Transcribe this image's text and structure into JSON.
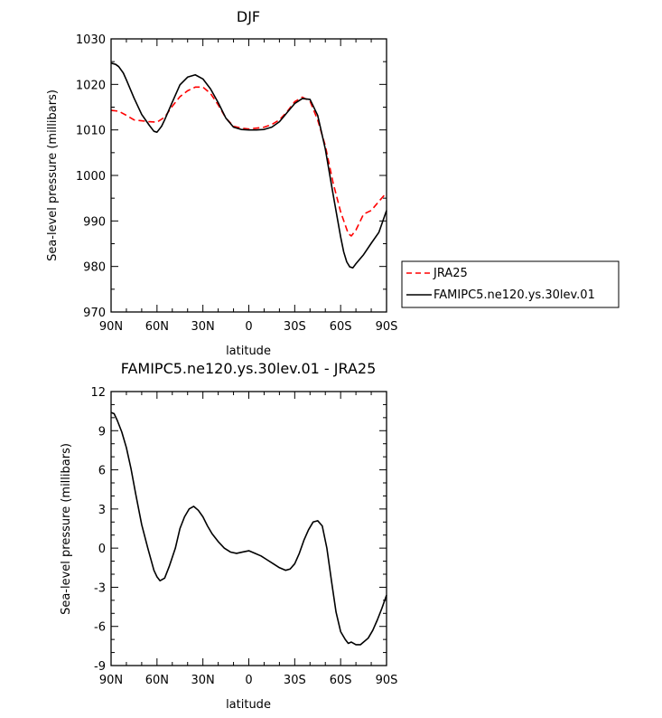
{
  "chart_data": [
    {
      "type": "line",
      "title": "DJF",
      "xlabel": "latitude",
      "ylabel": "Sea-level pressure (millibars)",
      "ylim": [
        970,
        1030
      ],
      "yticks": [
        "970",
        "980",
        "990",
        "1000",
        "1010",
        "1020",
        "1030"
      ],
      "xlim": [
        90,
        -90
      ],
      "xticks": [
        "90N",
        "60N",
        "30N",
        "0",
        "30S",
        "60S",
        "90S"
      ],
      "legend": {
        "placement": "right",
        "entries": [
          "JRA25",
          "FAMIPC5.ne120.ys.30lev.01"
        ]
      },
      "series": [
        {
          "name": "JRA25",
          "color": "#ff0000",
          "style": "dashed",
          "x": [
            90,
            85,
            80,
            75,
            70,
            65,
            60,
            55,
            50,
            45,
            40,
            35,
            30,
            25,
            20,
            15,
            10,
            5,
            0,
            -5,
            -10,
            -15,
            -20,
            -25,
            -30,
            -35,
            -40,
            -45,
            -50,
            -55,
            -60,
            -65,
            -67,
            -70,
            -75,
            -80,
            -85,
            -90
          ],
          "values": [
            1014.3,
            1014.1,
            1013.2,
            1012.2,
            1012.0,
            1011.8,
            1011.7,
            1012.8,
            1015.2,
            1017.3,
            1018.6,
            1019.4,
            1019.4,
            1018.0,
            1015.5,
            1012.6,
            1010.8,
            1010.4,
            1010.2,
            1010.4,
            1010.6,
            1011.2,
            1012.2,
            1014.0,
            1016.2,
            1017.2,
            1016.3,
            1012.2,
            1006.5,
            998.5,
            992.0,
            987.2,
            986.7,
            988.0,
            991.5,
            992.3,
            994.3,
            996.2
          ]
        },
        {
          "name": "FAMIPC5.ne120.ys.30lev.01",
          "color": "#000000",
          "style": "solid",
          "x": [
            90,
            87,
            85,
            82,
            80,
            75,
            70,
            65,
            62,
            60,
            57,
            55,
            50,
            45,
            40,
            35,
            30,
            25,
            20,
            15,
            10,
            5,
            0,
            -5,
            -10,
            -15,
            -20,
            -25,
            -30,
            -35,
            -40,
            -45,
            -50,
            -55,
            -60,
            -62,
            -64,
            -66,
            -68,
            -70,
            -75,
            -80,
            -85,
            -90
          ],
          "values": [
            1024.7,
            1024.4,
            1023.9,
            1022.5,
            1021.0,
            1017.0,
            1013.4,
            1011.0,
            1009.7,
            1009.5,
            1010.8,
            1012.2,
            1016.1,
            1019.9,
            1021.6,
            1022.1,
            1021.2,
            1019.0,
            1016.0,
            1012.6,
            1010.6,
            1010.1,
            1010.0,
            1010.0,
            1010.1,
            1010.6,
            1011.8,
            1013.8,
            1015.8,
            1016.9,
            1016.7,
            1013.2,
            1005.8,
            996.0,
            986.5,
            983.2,
            981.0,
            979.9,
            979.7,
            980.6,
            982.6,
            985.1,
            987.5,
            992.3
          ]
        }
      ]
    },
    {
      "type": "line",
      "title": "FAMIPC5.ne120.ys.30lev.01 - JRA25",
      "xlabel": "latitude",
      "ylabel": "Sea-level pressure (millibars)",
      "ylim": [
        -9,
        12
      ],
      "yticks": [
        "-9",
        "-6",
        "-3",
        "0",
        "3",
        "6",
        "9",
        "12"
      ],
      "xlim": [
        90,
        -90
      ],
      "xticks": [
        "90N",
        "60N",
        "30N",
        "0",
        "30S",
        "60S",
        "90S"
      ],
      "series": [
        {
          "color": "#000000",
          "style": "solid",
          "x": [
            90,
            88,
            86,
            83,
            80,
            77,
            74,
            70,
            66,
            62,
            60,
            58,
            55,
            52,
            48,
            45,
            42,
            39,
            36,
            33,
            30,
            27,
            24,
            20,
            16,
            12,
            8,
            4,
            0,
            -4,
            -8,
            -12,
            -16,
            -20,
            -24,
            -27,
            -30,
            -33,
            -36,
            -39,
            -42,
            -45,
            -48,
            -51,
            -54,
            -57,
            -60,
            -63,
            -65,
            -67,
            -70,
            -73,
            -75,
            -78,
            -81,
            -84,
            -87,
            -90
          ],
          "values": [
            10.4,
            10.3,
            9.8,
            8.9,
            7.7,
            6.1,
            4.2,
            1.8,
            0.0,
            -1.7,
            -2.2,
            -2.5,
            -2.3,
            -1.4,
            0.0,
            1.5,
            2.4,
            3.0,
            3.2,
            2.9,
            2.4,
            1.7,
            1.1,
            0.5,
            0.0,
            -0.3,
            -0.4,
            -0.3,
            -0.2,
            -0.4,
            -0.6,
            -0.9,
            -1.2,
            -1.5,
            -1.7,
            -1.6,
            -1.2,
            -0.4,
            0.6,
            1.4,
            2.0,
            2.1,
            1.7,
            0.0,
            -2.5,
            -4.9,
            -6.4,
            -7.0,
            -7.3,
            -7.2,
            -7.4,
            -7.4,
            -7.2,
            -6.9,
            -6.3,
            -5.5,
            -4.6,
            -3.6
          ]
        }
      ]
    }
  ]
}
